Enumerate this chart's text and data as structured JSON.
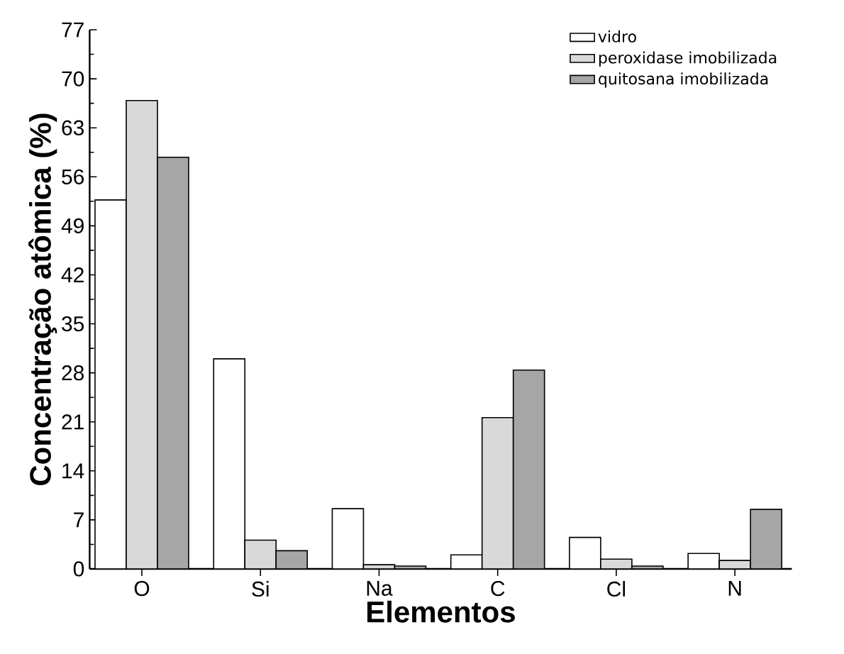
{
  "chart_data": {
    "type": "bar",
    "xlabel": "Elementos",
    "ylabel": "Concentração atômica (%)",
    "categories": [
      "O",
      "Si",
      "Na",
      "C",
      "Cl",
      "N"
    ],
    "series": [
      {
        "name": "vidro",
        "color": "#ffffff",
        "values": [
          52.7,
          30.0,
          8.6,
          2.0,
          4.5,
          2.2
        ]
      },
      {
        "name": "peroxidase imobilizada",
        "color": "#d9d9d9",
        "values": [
          66.9,
          4.1,
          0.6,
          21.6,
          1.4,
          1.2
        ]
      },
      {
        "name": "quitosana imobilizada",
        "color": "#a6a6a6",
        "values": [
          58.8,
          2.6,
          0.4,
          28.4,
          0.4,
          8.5
        ]
      }
    ],
    "ylim": [
      0,
      77
    ],
    "yticks": [
      0,
      7,
      14,
      21,
      28,
      35,
      42,
      49,
      56,
      63,
      70,
      77
    ],
    "legend": "top right",
    "grid": false
  }
}
